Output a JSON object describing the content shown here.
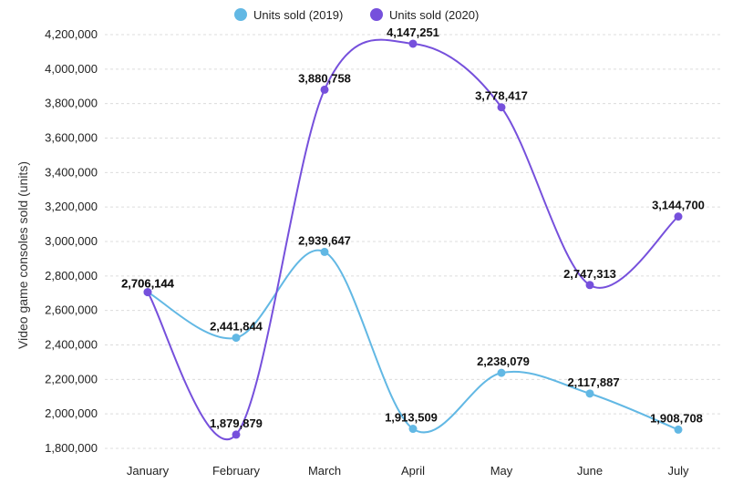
{
  "chart_data": {
    "type": "line",
    "title": "",
    "xlabel": "",
    "ylabel": "Video game consoles sold (units)",
    "categories": [
      "January",
      "February",
      "March",
      "April",
      "May",
      "June",
      "July"
    ],
    "series": [
      {
        "name": "Units sold (2019)",
        "color": "#62b8e4",
        "values": [
          2706144,
          2441844,
          2939647,
          1913509,
          2238079,
          2117887,
          1908708
        ],
        "labels": [
          "2,706,144",
          "2,441,844",
          "2,939,647",
          "1,913,509",
          "2,238,079",
          "2,117,887",
          "1,908,708"
        ]
      },
      {
        "name": "Units sold (2020)",
        "color": "#7650dc",
        "values": [
          2706144,
          1879879,
          3880758,
          4147251,
          3778417,
          2747313,
          3144700
        ],
        "labels": [
          "2,706,144",
          "1,879,879",
          "3,880,758",
          "4,147,251",
          "3,778,417",
          "2,747,313",
          "3,144,700"
        ]
      }
    ],
    "ylim": [
      1800000,
      4200000
    ],
    "yticks": [
      1800000,
      2000000,
      2200000,
      2400000,
      2600000,
      2800000,
      3000000,
      3200000,
      3400000,
      3600000,
      3800000,
      4000000,
      4200000
    ],
    "ytick_labels": [
      "1,800,000",
      "2,000,000",
      "2,200,000",
      "2,400,000",
      "2,600,000",
      "2,800,000",
      "3,000,000",
      "3,200,000",
      "3,400,000",
      "3,600,000",
      "3,800,000",
      "4,000,000",
      "4,200,000"
    ],
    "grid": true,
    "legend": "top-center"
  }
}
